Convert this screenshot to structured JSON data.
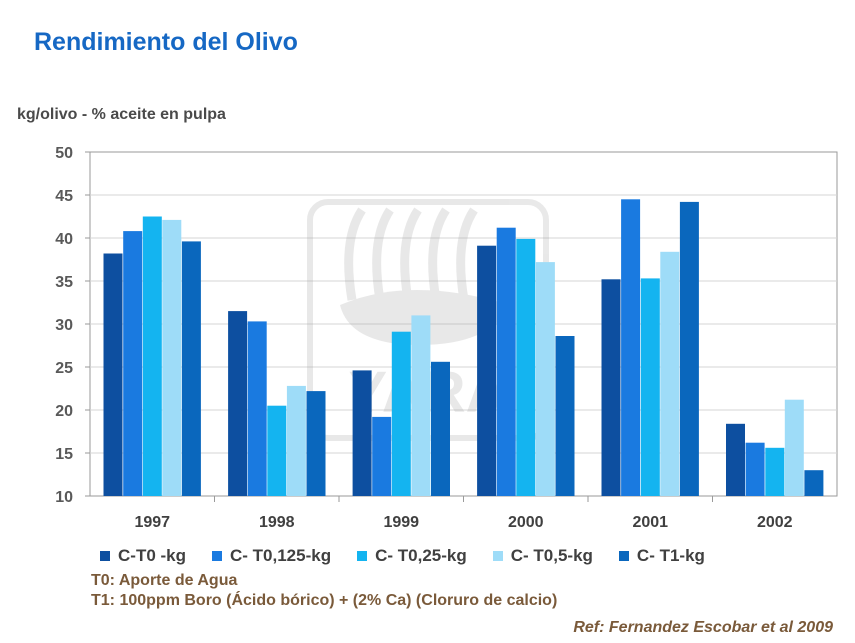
{
  "title": "Rendimiento del Olivo",
  "ylabel": "kg/olivo - % aceite en pulpa",
  "notes": {
    "t0": "T0: Aporte de Agua",
    "t1": "T1: 100ppm Boro (Ácido bórico) + (2% Ca) (Cloruro de calcio)"
  },
  "ref": "Ref: Fernandez Escobar et al 2009",
  "watermark": "YARA",
  "chart_data": {
    "type": "bar",
    "title": "Rendimiento del Olivo",
    "xlabel": "",
    "ylabel": "kg/olivo - % aceite en pulpa",
    "ylim": [
      10,
      50
    ],
    "yticks": [
      10,
      15,
      20,
      25,
      30,
      35,
      40,
      45,
      50
    ],
    "grid": true,
    "legend": "bottom",
    "categories": [
      "1997",
      "1998",
      "1999",
      "2000",
      "2001",
      "2002"
    ],
    "series": [
      {
        "name": "C-T0 -kg",
        "color": "#0d4fa0",
        "values": [
          38.2,
          31.5,
          24.6,
          39.1,
          35.2,
          18.4
        ]
      },
      {
        "name": "C- T0,125-kg",
        "color": "#1a7ae0",
        "values": [
          40.8,
          30.3,
          19.2,
          41.2,
          44.5,
          16.2
        ]
      },
      {
        "name": "C- T0,25-kg",
        "color": "#14b4f0",
        "values": [
          42.5,
          20.5,
          29.1,
          39.9,
          35.3,
          15.6
        ]
      },
      {
        "name": "C- T0,5-kg",
        "color": "#9edcf8",
        "values": [
          42.1,
          22.8,
          31.0,
          37.2,
          38.4,
          21.2
        ]
      },
      {
        "name": "C- T1-kg",
        "color": "#0a67bd",
        "values": [
          39.6,
          22.2,
          25.6,
          28.6,
          44.2,
          13.0
        ]
      }
    ]
  }
}
